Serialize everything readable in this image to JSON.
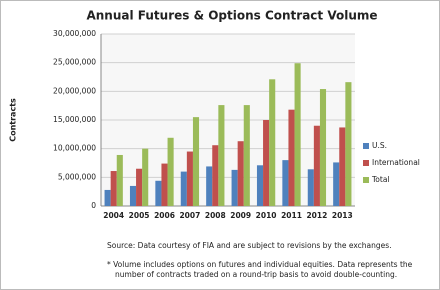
{
  "chart_data": {
    "type": "bar",
    "title": "Annual Futures & Options Contract Volume",
    "y_label": "Contracts",
    "categories": [
      "2004",
      "2005",
      "2006",
      "2007",
      "2008",
      "2009",
      "2010",
      "2011",
      "2012",
      "2013"
    ],
    "series": [
      {
        "name": "U.S.",
        "color": "#4f81bd",
        "values": [
          2800000,
          3500000,
          4400000,
          6000000,
          6900000,
          6300000,
          7100000,
          8000000,
          6400000,
          7600000
        ]
      },
      {
        "name": "International",
        "color": "#c0504d",
        "values": [
          6100000,
          6500000,
          7400000,
          9500000,
          10600000,
          11300000,
          15000000,
          16800000,
          14000000,
          13700000
        ]
      },
      {
        "name": "Total",
        "color": "#9bbb59",
        "values": [
          8900000,
          10000000,
          11900000,
          15500000,
          17600000,
          17600000,
          22100000,
          24900000,
          20400000,
          21600000
        ]
      }
    ],
    "ylim": [
      0,
      30000000
    ],
    "yticks": [
      0,
      {
        "value": 5000000,
        "label": "5,000,000"
      },
      {
        "value": 10000000,
        "label": "10,000,000"
      },
      {
        "value": 15000000,
        "label": "15,000,000"
      },
      {
        "value": 20000000,
        "label": "20,000,000"
      },
      {
        "value": 25000000,
        "label": "25,000,000"
      },
      {
        "value": 30000000,
        "label": "30,000,000"
      }
    ],
    "grid": true,
    "source": "Source: Data courtesy of FIA and are subject to revisions by the exchanges.",
    "notes": [
      "* Volume includes options on futures and individual equities. Data represents the",
      "number of contracts traded on a round-trip basis to avoid double-counting."
    ]
  }
}
